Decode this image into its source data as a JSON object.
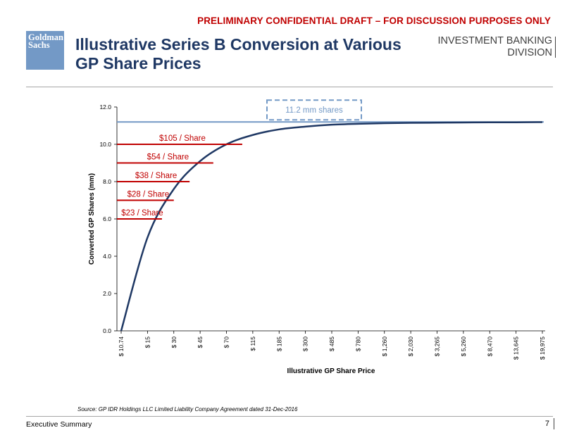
{
  "header": {
    "banner": "PRELIMINARY CONFIDENTIAL DRAFT – FOR DISCUSSION PURPOSES ONLY",
    "logo_line1": "Goldman",
    "logo_line2": "Sachs",
    "title": "Illustrative Series B Conversion at Various GP Share Prices",
    "division_line1": "INVESTMENT BANKING",
    "division_line2": "DIVISION"
  },
  "footer": {
    "section": "Executive Summary",
    "page_number": "7",
    "source": "Source: GP IDR Holdings LLC Limited Liability Company Agreement dated 31-Dec-2016"
  },
  "colors": {
    "curve": "#1f3864",
    "cap_line": "#7399c6",
    "price_lines": "#c00000",
    "logo": "#7399c6"
  },
  "chart_data": {
    "type": "line",
    "xlabel": "Illustrative GP Share Price",
    "ylabel": "Converted GP Shares (mm)",
    "ylim": [
      0,
      12
    ],
    "yticks": [
      "0.0",
      "2.0",
      "4.0",
      "6.0",
      "8.0",
      "10.0",
      "12.0"
    ],
    "x_scale": "categorical",
    "x_ticks": [
      "$ 10.74",
      "$ 15",
      "$ 30",
      "$ 45",
      "$ 70",
      "$ 115",
      "$ 185",
      "$ 300",
      "$ 485",
      "$ 780",
      "$ 1,260",
      "$ 2,030",
      "$ 3,265",
      "$ 5,260",
      "$ 8,470",
      "$ 13,645",
      "$ 19,975"
    ],
    "series": [
      {
        "values": [
          0,
          5.0,
          7.6,
          9.1,
          10.0,
          10.5,
          10.8,
          10.95,
          11.05,
          11.1,
          11.13,
          11.15,
          11.16,
          11.17,
          11.18,
          11.18,
          11.19
        ]
      }
    ],
    "cap": {
      "value": 11.2,
      "label": "11.2 mm shares"
    },
    "annotations": [
      {
        "label": "$105 / Share",
        "y": 10.0,
        "x_index": 4.6
      },
      {
        "label": "$54 / Share",
        "y": 9.0,
        "x_index": 3.5
      },
      {
        "label": "$38 / Share",
        "y": 8.0,
        "x_index": 2.6
      },
      {
        "label": "$28 / Share",
        "y": 7.0,
        "x_index": 2.0
      },
      {
        "label": "$23 / Share",
        "y": 6.0,
        "x_index": 1.55
      }
    ]
  }
}
